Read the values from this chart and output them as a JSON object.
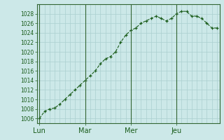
{
  "x": [
    0,
    1,
    2,
    3,
    4,
    5,
    6,
    7,
    8,
    9,
    10,
    11,
    12,
    13,
    14,
    15,
    16,
    17,
    18,
    19,
    20,
    21,
    22,
    23,
    24,
    25,
    26,
    27,
    28,
    29,
    30,
    31,
    32,
    33,
    34,
    35
  ],
  "y": [
    1006.0,
    1007.5,
    1008.0,
    1008.2,
    1009.0,
    1010.0,
    1011.0,
    1012.0,
    1013.0,
    1014.0,
    1015.0,
    1016.0,
    1017.5,
    1018.5,
    1019.0,
    1020.0,
    1022.0,
    1023.5,
    1024.5,
    1025.0,
    1026.0,
    1026.5,
    1027.0,
    1027.5,
    1027.0,
    1026.5,
    1027.0,
    1028.0,
    1028.5,
    1028.5,
    1027.5,
    1027.5,
    1027.0,
    1026.0,
    1025.0,
    1025.0
  ],
  "day_ticks": [
    0,
    9,
    18,
    27
  ],
  "day_labels": [
    "Lun",
    "Mar",
    "Mer",
    "Jeu"
  ],
  "yticks": [
    1006,
    1008,
    1010,
    1012,
    1014,
    1016,
    1018,
    1020,
    1022,
    1024,
    1026,
    1028
  ],
  "ylim": [
    1005,
    1030
  ],
  "xlim": [
    -0.5,
    35.5
  ],
  "bg_color": "#cce8e8",
  "line_color": "#1a5c1a",
  "marker_color": "#1a5c1a",
  "grid_color": "#aacfcf",
  "axis_color": "#336633",
  "tick_label_color": "#1a5c1a",
  "vline_color": "#336633"
}
